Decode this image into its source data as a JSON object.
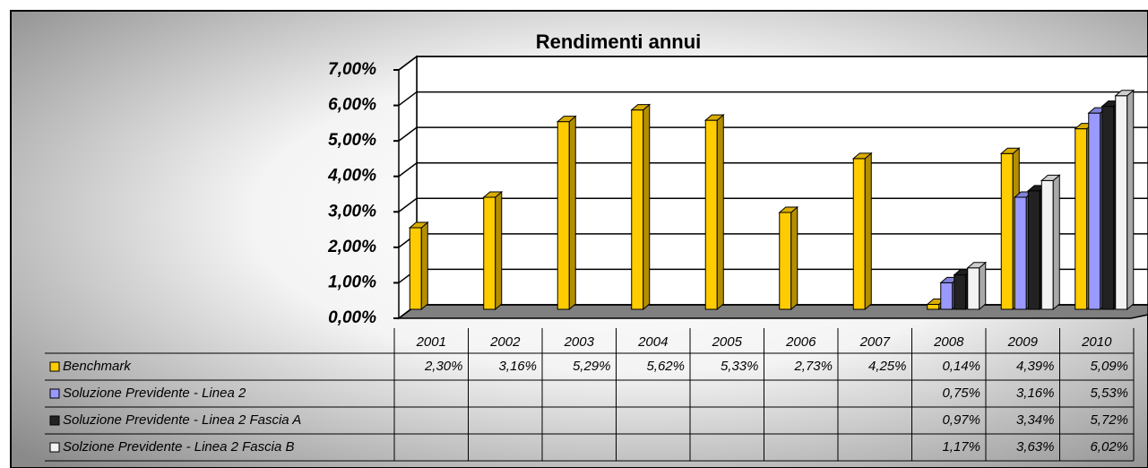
{
  "chart_data": {
    "type": "bar3d",
    "title": "Rendimenti annui",
    "categories": [
      "2001",
      "2002",
      "2003",
      "2004",
      "2005",
      "2006",
      "2007",
      "2008",
      "2009",
      "2010"
    ],
    "ylim": [
      0,
      7
    ],
    "yticks": [
      {
        "value": 0,
        "label": "0,00%"
      },
      {
        "value": 1,
        "label": "1,00%"
      },
      {
        "value": 2,
        "label": "2,00%"
      },
      {
        "value": 3,
        "label": "3,00%"
      },
      {
        "value": 4,
        "label": "4,00%"
      },
      {
        "value": 5,
        "label": "5,00%"
      },
      {
        "value": 6,
        "label": "6,00%"
      },
      {
        "value": 7,
        "label": "7,00%"
      }
    ],
    "grid": true,
    "series": [
      {
        "name": "Benchmark",
        "color": "#ffcc00",
        "values": [
          2.3,
          3.16,
          5.29,
          5.62,
          5.33,
          2.73,
          4.25,
          0.14,
          4.39,
          5.09
        ],
        "value_labels": [
          "2,30%",
          "3,16%",
          "5,29%",
          "5,62%",
          "5,33%",
          "2,73%",
          "4,25%",
          "0,14%",
          "4,39%",
          "5,09%"
        ]
      },
      {
        "name": "Soluzione Previdente - Linea 2",
        "color": "#9999ff",
        "values": [
          null,
          null,
          null,
          null,
          null,
          null,
          null,
          0.75,
          3.16,
          5.53
        ],
        "value_labels": [
          null,
          null,
          null,
          null,
          null,
          null,
          null,
          "0,75%",
          "3,16%",
          "5,53%"
        ]
      },
      {
        "name": "Soluzione Previdente - Linea 2 Fascia A",
        "color": "#222222",
        "values": [
          null,
          null,
          null,
          null,
          null,
          null,
          null,
          0.97,
          3.34,
          5.72
        ],
        "value_labels": [
          null,
          null,
          null,
          null,
          null,
          null,
          null,
          "0,97%",
          "3,34%",
          "5,72%"
        ]
      },
      {
        "name": "Solzione Previdente - Linea 2 Fascia B",
        "color": "#f2f2f2",
        "values": [
          null,
          null,
          null,
          null,
          null,
          null,
          null,
          1.17,
          3.63,
          6.02
        ],
        "value_labels": [
          null,
          null,
          null,
          null,
          null,
          null,
          null,
          "1,17%",
          "3,63%",
          "6,02%"
        ]
      }
    ]
  }
}
